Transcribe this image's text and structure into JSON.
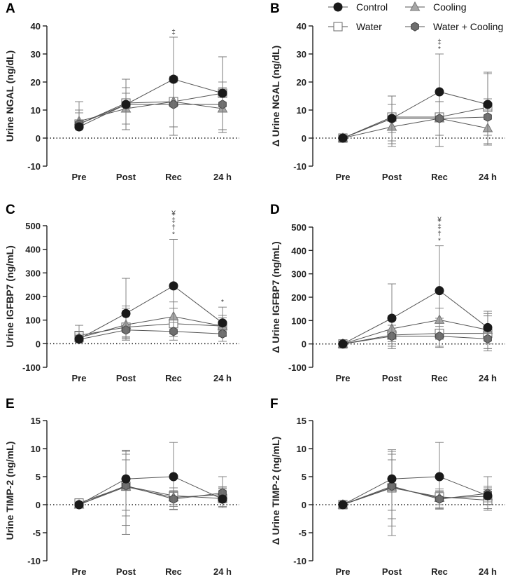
{
  "legend": [
    {
      "name": "Control",
      "marker": "circle",
      "fill": "#1a1a1a"
    },
    {
      "name": "Cooling",
      "marker": "triangle",
      "fill": "#a6a6a6"
    },
    {
      "name": "Water",
      "marker": "square",
      "fill": "#ffffff"
    },
    {
      "name": "Water + Cooling",
      "marker": "hexagon",
      "fill": "#6e6e6e"
    }
  ],
  "chart_data": [
    {
      "panel": "A",
      "type": "line",
      "ylabel": "Urine NGAL (ng/dL)",
      "categories": [
        "Pre",
        "Post",
        "Rec",
        "24 h"
      ],
      "ylim": [
        -10,
        40
      ],
      "yticks": [
        -10,
        0,
        10,
        20,
        30,
        40
      ],
      "zero_line": true,
      "series": [
        {
          "name": "Control",
          "values": [
            4,
            12,
            21,
            16
          ],
          "err_upper": [
            6,
            21,
            36,
            29
          ],
          "err_lower": [
            3,
            3,
            1,
            2
          ]
        },
        {
          "name": "Cooling",
          "values": [
            6,
            10.5,
            13,
            10.5
          ],
          "err_upper": [
            13,
            16,
            22,
            18
          ],
          "err_lower": [
            3,
            5,
            4,
            3
          ]
        },
        {
          "name": "Water",
          "values": [
            5,
            12.5,
            13,
            16
          ],
          "err_upper": [
            10,
            21,
            22,
            29
          ],
          "err_lower": [
            3,
            3,
            1,
            2
          ]
        },
        {
          "name": "Water + Cooling",
          "values": [
            5,
            12,
            12,
            12
          ],
          "err_upper": [
            9,
            18,
            20,
            20
          ],
          "err_lower": [
            3,
            3,
            4,
            3
          ]
        }
      ],
      "annotations": [
        {
          "category": "Rec",
          "text": "‡"
        }
      ]
    },
    {
      "panel": "B",
      "type": "line",
      "ylabel": "Δ Urine NGAL (ng/dL)",
      "categories": [
        "Pre",
        "Post",
        "Rec",
        "24 h"
      ],
      "ylim": [
        -10,
        40
      ],
      "yticks": [
        -10,
        0,
        10,
        20,
        30,
        40
      ],
      "zero_line": true,
      "series": [
        {
          "name": "Control",
          "values": [
            0,
            7,
            16.5,
            12
          ],
          "err_upper": [
            0,
            15,
            30,
            23.5
          ],
          "err_lower": [
            0,
            -3,
            -3,
            -2
          ]
        },
        {
          "name": "Cooling",
          "values": [
            0,
            4,
            7,
            3.5
          ],
          "err_upper": [
            0,
            9,
            13,
            10
          ],
          "err_lower": [
            0,
            -1,
            1,
            -2
          ]
        },
        {
          "name": "Water",
          "values": [
            0,
            7.5,
            7.5,
            11
          ],
          "err_upper": [
            0,
            15,
            16,
            23
          ],
          "err_lower": [
            0,
            -2,
            -3,
            -2.5
          ]
        },
        {
          "name": "Water + Cooling",
          "values": [
            0,
            7,
            7,
            7.5
          ],
          "err_upper": [
            0,
            12,
            13,
            14
          ],
          "err_lower": [
            0,
            2,
            1,
            1
          ]
        }
      ],
      "annotations": [
        {
          "category": "Rec",
          "text": "‡"
        },
        {
          "category": "Rec",
          "text": "*"
        }
      ]
    },
    {
      "panel": "C",
      "type": "line",
      "ylabel": "Urine IGFBP7 (ng/mL)",
      "categories": [
        "Pre",
        "Post",
        "Rec",
        "24 h"
      ],
      "ylim": [
        -100,
        500
      ],
      "yticks": [
        -100,
        0,
        100,
        200,
        300,
        400,
        500
      ],
      "zero_line": true,
      "series": [
        {
          "name": "Control",
          "values": [
            20,
            128,
            245,
            88
          ],
          "err_upper": [
            40,
            277,
            442,
            155
          ],
          "err_lower": [
            10,
            30,
            60,
            40
          ]
        },
        {
          "name": "Cooling",
          "values": [
            25,
            80,
            115,
            75
          ],
          "err_upper": [
            50,
            150,
            177,
            110
          ],
          "err_lower": [
            10,
            25,
            50,
            40
          ]
        },
        {
          "name": "Water",
          "values": [
            35,
            70,
            85,
            75
          ],
          "err_upper": [
            78,
            160,
            150,
            120
          ],
          "err_lower": [
            10,
            20,
            30,
            30
          ]
        },
        {
          "name": "Water + Cooling",
          "values": [
            18,
            58,
            52,
            42
          ],
          "err_upper": [
            35,
            120,
            90,
            75
          ],
          "err_lower": [
            5,
            15,
            15,
            10
          ]
        }
      ],
      "annotations": [
        {
          "category": "Rec",
          "text": "¥"
        },
        {
          "category": "Rec",
          "text": "‡"
        },
        {
          "category": "Rec",
          "text": "†"
        },
        {
          "category": "Rec",
          "text": "*"
        },
        {
          "category": "24 h",
          "text": "*"
        }
      ]
    },
    {
      "panel": "D",
      "type": "line",
      "ylabel": "Δ Urine IGFBP7 (ng/mL)",
      "categories": [
        "Pre",
        "Post",
        "Rec",
        "24 h"
      ],
      "ylim": [
        -100,
        500
      ],
      "yticks": [
        -100,
        0,
        100,
        200,
        300,
        400,
        500
      ],
      "zero_line": true,
      "series": [
        {
          "name": "Control",
          "values": [
            0,
            110,
            228,
            70
          ],
          "err_upper": [
            0,
            257,
            420,
            140
          ],
          "err_lower": [
            0,
            -20,
            20,
            -30
          ]
        },
        {
          "name": "Cooling",
          "values": [
            0,
            65,
            103,
            60
          ],
          "err_upper": [
            0,
            120,
            153,
            120
          ],
          "err_lower": [
            0,
            10,
            20,
            0
          ]
        },
        {
          "name": "Water",
          "values": [
            0,
            38,
            45,
            45
          ],
          "err_upper": [
            0,
            100,
            110,
            130
          ],
          "err_lower": [
            0,
            -10,
            -15,
            -20
          ]
        },
        {
          "name": "Water + Cooling",
          "values": [
            0,
            33,
            33,
            22
          ],
          "err_upper": [
            0,
            80,
            75,
            60
          ],
          "err_lower": [
            0,
            0,
            -10,
            -20
          ]
        }
      ],
      "annotations": [
        {
          "category": "Rec",
          "text": "¥"
        },
        {
          "category": "Rec",
          "text": "‡"
        },
        {
          "category": "Rec",
          "text": "†"
        },
        {
          "category": "Rec",
          "text": "*"
        }
      ]
    },
    {
      "panel": "E",
      "type": "line",
      "ylabel": "Urine TIMP-2 (ng/mL)",
      "categories": [
        "Pre",
        "Post",
        "Rec",
        "24 h"
      ],
      "ylim": [
        -10,
        15
      ],
      "yticks": [
        -10,
        -5,
        0,
        5,
        10,
        15
      ],
      "zero_line": true,
      "series": [
        {
          "name": "Control",
          "values": [
            0,
            4.6,
            5,
            1
          ],
          "err_upper": [
            0,
            9.7,
            11.1,
            5
          ],
          "err_lower": [
            0,
            -5.3,
            -0.9,
            -0.3
          ]
        },
        {
          "name": "Cooling",
          "values": [
            0,
            3.2,
            1.3,
            1.8
          ],
          "err_upper": [
            0,
            9.5,
            2.5,
            3
          ],
          "err_lower": [
            0,
            -3.7,
            -0.3,
            0.5
          ]
        },
        {
          "name": "Water",
          "values": [
            0.3,
            3.3,
            1.6,
            1.1
          ],
          "err_upper": [
            0.5,
            9,
            3,
            2.8
          ],
          "err_lower": [
            0,
            -2,
            -0.8,
            -0.5
          ]
        },
        {
          "name": "Water + Cooling",
          "values": [
            0,
            3.4,
            1,
            2.1
          ],
          "err_upper": [
            0,
            8,
            2.2,
            3.2
          ],
          "err_lower": [
            0,
            -1,
            0,
            0.8
          ]
        }
      ],
      "annotations": []
    },
    {
      "panel": "F",
      "type": "line",
      "ylabel": "Δ Urine TIMP-2 (ng/mL)",
      "categories": [
        "Pre",
        "Post",
        "Rec",
        "24 h"
      ],
      "ylim": [
        -10,
        15
      ],
      "yticks": [
        -10,
        -5,
        0,
        5,
        10,
        15
      ],
      "zero_line": true,
      "series": [
        {
          "name": "Control",
          "values": [
            0,
            4.6,
            5,
            1.6
          ],
          "err_upper": [
            0,
            9.8,
            11.1,
            5
          ],
          "err_lower": [
            0,
            -5.5,
            -0.8,
            -1
          ]
        },
        {
          "name": "Cooling",
          "values": [
            0,
            3.1,
            1.2,
            1.5
          ],
          "err_upper": [
            0,
            9.5,
            2.5,
            3
          ],
          "err_lower": [
            0,
            -3.8,
            -0.5,
            0
          ]
        },
        {
          "name": "Water",
          "values": [
            0,
            3,
            1.4,
            0.8
          ],
          "err_upper": [
            0,
            9,
            2.8,
            2.7
          ],
          "err_lower": [
            0,
            -2.5,
            -0.7,
            -0.7
          ]
        },
        {
          "name": "Water + Cooling",
          "values": [
            0,
            3.3,
            1,
            2
          ],
          "err_upper": [
            0,
            8,
            2.3,
            3.3
          ],
          "err_lower": [
            0,
            -1,
            0,
            0.5
          ]
        }
      ],
      "annotations": []
    }
  ]
}
